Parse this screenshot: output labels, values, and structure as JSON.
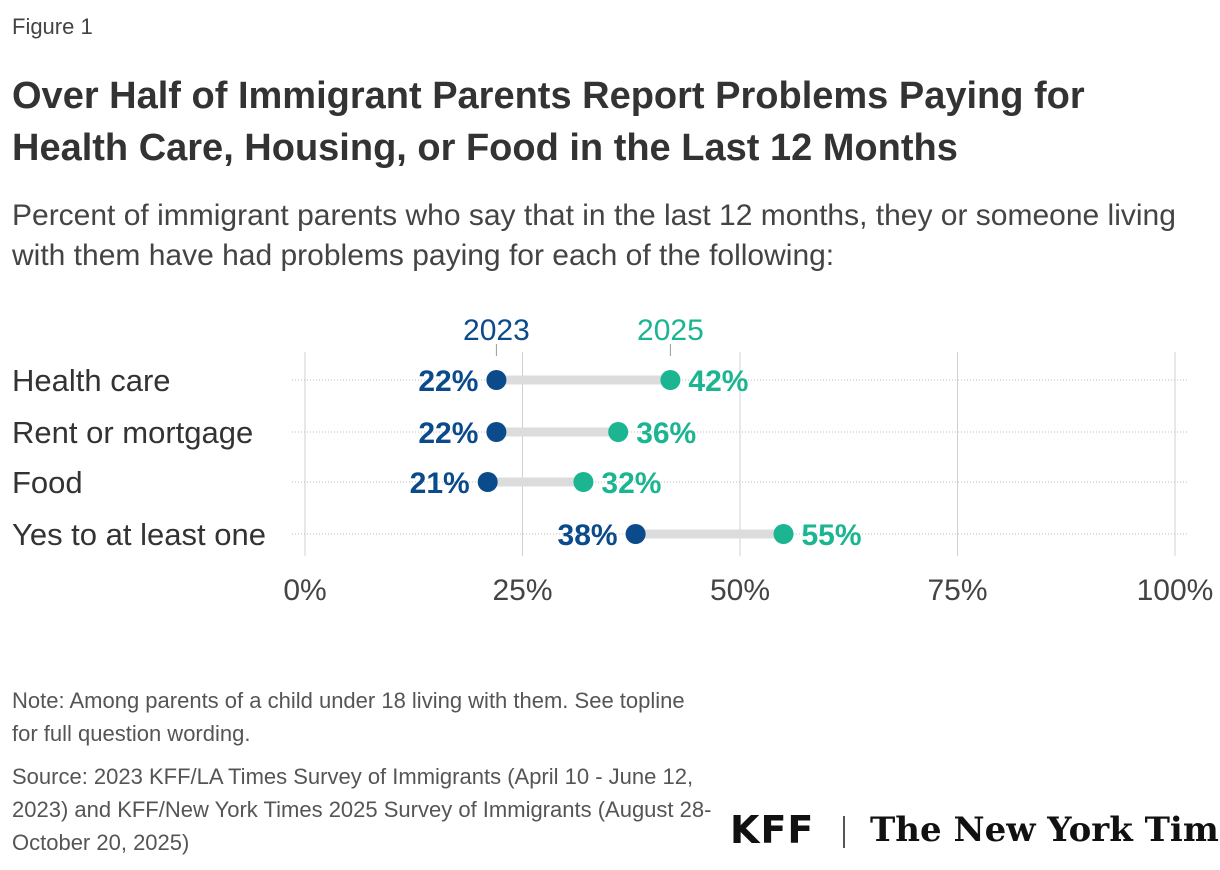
{
  "figure_label": "Figure 1",
  "title": "Over Half of Immigrant Parents Report Problems Paying for Health Care, Housing, or Food in the Last 12 Months",
  "subtitle": "Percent of immigrant parents who say that in the last 12 months, they or someone living with them have had problems paying for each of the following:",
  "note": "Note: Among parents of a child under 18 living with them. See topline for full question wording.",
  "source": "Source: 2023 KFF/LA Times Survey of Immigrants (April 10 - June 12, 2023) and KFF/New York Times 2025 Survey of Immigrants (August 28-October 20, 2025)",
  "logos": {
    "kff": "KFF",
    "nyt": "The New York Times"
  },
  "colors": {
    "y2023": "#0b4a8b",
    "y2025": "#1bb591",
    "connector": "#dcdcdc",
    "grid": "#d0d0d0",
    "text": "#333333"
  },
  "chart_data": {
    "type": "dot-plot",
    "categories": [
      "Health care",
      "Rent or mortgage",
      "Food",
      "Yes to at least one"
    ],
    "series": [
      {
        "name": "2023",
        "values": [
          22,
          22,
          21,
          38
        ],
        "labels": [
          "22%",
          "22%",
          "21%",
          "38%"
        ]
      },
      {
        "name": "2025",
        "values": [
          42,
          36,
          32,
          55
        ],
        "labels": [
          "42%",
          "36%",
          "32%",
          "55%"
        ]
      }
    ],
    "xlim": [
      0,
      100
    ],
    "x_ticks": [
      0,
      25,
      50,
      75,
      100
    ],
    "x_tick_labels": [
      "0%",
      "25%",
      "50%",
      "75%",
      "100%"
    ],
    "grid": true,
    "legend": "top"
  }
}
